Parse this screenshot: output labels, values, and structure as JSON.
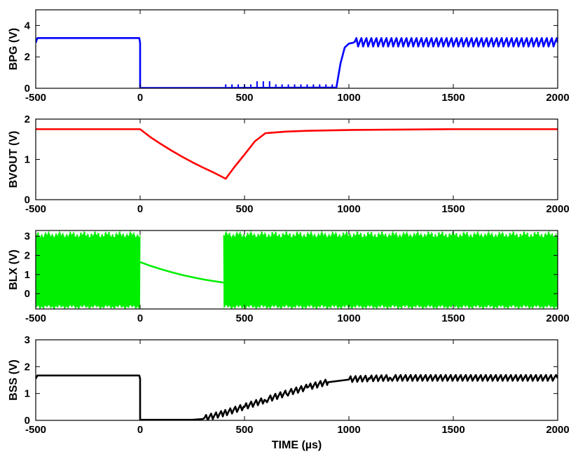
{
  "chart_data": [
    {
      "id": "bpg",
      "type": "line",
      "ylabel": "BPG (V)",
      "xlim": [
        -500,
        2000
      ],
      "ylim": [
        0,
        5
      ],
      "xticks": [
        -500,
        0,
        500,
        1000,
        1500,
        2000
      ],
      "xtick_labels": [
        "-500",
        "0",
        "500",
        "1000",
        "1500",
        "2000"
      ],
      "yticks": [
        0,
        2,
        4
      ],
      "ytick_labels": [
        "0",
        "2",
        "4"
      ],
      "color": "#0000ff",
      "grid": false,
      "series": [
        {
          "x": [
            -500,
            -0.1,
            0,
            400,
            940,
            960,
            980,
            1000,
            1020,
            2000
          ],
          "y": [
            2.9,
            2.9,
            0.02,
            0.02,
            0.05,
            1.6,
            2.6,
            2.85,
            2.9,
            2.9
          ]
        }
      ]
    },
    {
      "id": "bvout",
      "type": "line",
      "ylabel": "BVOUT (V)",
      "xlim": [
        -500,
        2000
      ],
      "ylim": [
        0,
        2
      ],
      "xticks": [
        -500,
        0,
        500,
        1000,
        1500,
        2000
      ],
      "xtick_labels": [
        "-500",
        "0",
        "500",
        "1000",
        "1500",
        "2000"
      ],
      "yticks": [
        0,
        1,
        2
      ],
      "ytick_labels": [
        "0",
        "1",
        "2"
      ],
      "color": "#ff0000",
      "grid": false,
      "series": [
        {
          "x": [
            -500,
            0,
            50,
            100,
            150,
            200,
            250,
            300,
            350,
            410,
            450,
            500,
            550,
            600,
            700,
            800,
            1000,
            1500,
            2000
          ],
          "y": [
            1.75,
            1.75,
            1.55,
            1.38,
            1.22,
            1.07,
            0.93,
            0.8,
            0.68,
            0.52,
            0.8,
            1.12,
            1.45,
            1.65,
            1.69,
            1.71,
            1.73,
            1.75,
            1.75
          ]
        }
      ]
    },
    {
      "id": "blx",
      "type": "line",
      "ylabel": "BLX (V)",
      "xlim": [
        -500,
        2000
      ],
      "ylim": [
        -0.8,
        3.3
      ],
      "xticks": [
        -500,
        0,
        500,
        1000,
        1500,
        2000
      ],
      "xtick_labels": [
        "-500",
        "0",
        "500",
        "1000",
        "1500",
        "2000"
      ],
      "yticks": [
        0,
        1,
        2,
        3
      ],
      "ytick_labels": [
        "0",
        "1",
        "2",
        "3"
      ],
      "color": "#00ee00",
      "grid": false,
      "series": [
        {
          "x": [
            0,
            50,
            100,
            150,
            200,
            250,
            300,
            350,
            400,
            410
          ],
          "y": [
            1.65,
            1.45,
            1.28,
            1.12,
            0.98,
            0.86,
            0.75,
            0.66,
            0.58,
            0.55
          ]
        }
      ],
      "switching_bands": [
        {
          "x": [
            -500,
            0
          ],
          "low": -0.7,
          "high": 3.1
        },
        {
          "x": [
            400,
            2000
          ],
          "low": -0.7,
          "high": 3.1
        }
      ]
    },
    {
      "id": "bss",
      "type": "line",
      "ylabel": "BSS (V)",
      "xlabel": "TIME (µs)",
      "xlim": [
        -500,
        2000
      ],
      "ylim": [
        0,
        3
      ],
      "xticks": [
        -500,
        0,
        500,
        1000,
        1500,
        2000
      ],
      "xtick_labels": [
        "-500",
        "0",
        "500",
        "1000",
        "1500",
        "2000"
      ],
      "yticks": [
        0,
        1,
        2,
        3
      ],
      "ytick_labels": [
        "0",
        "1",
        "2",
        "3"
      ],
      "color": "#000000",
      "grid": false,
      "series": [
        {
          "x": [
            -500,
            -0.1,
            0,
            250,
            300,
            400,
            500,
            600,
            700,
            800,
            900,
            1000,
            1100,
            1200,
            2000
          ],
          "y": [
            1.55,
            1.55,
            0.02,
            0.02,
            0.05,
            0.25,
            0.5,
            0.75,
            1.0,
            1.22,
            1.42,
            1.52,
            1.55,
            1.57,
            1.57
          ]
        }
      ]
    }
  ]
}
